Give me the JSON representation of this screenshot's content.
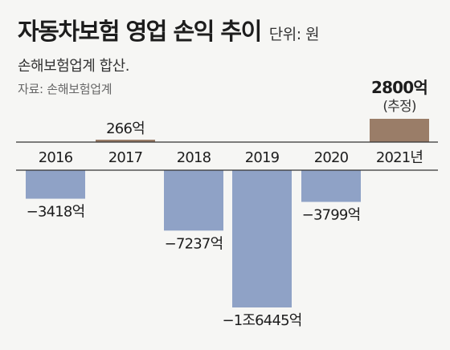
{
  "header": {
    "title": "자동차보험 영업 손익 추이",
    "unit": "단위: 원",
    "subtitle": "손해보험업계 합산.",
    "source": "자료: 손해보험업계"
  },
  "colors": {
    "negative": "#8fa2c6",
    "positive": "#9a7d68",
    "axis": "#333333",
    "background": "#f6f6f4"
  },
  "chart_data": {
    "type": "bar",
    "categories": [
      "2016",
      "2017",
      "2018",
      "2019",
      "2020",
      "2021년"
    ],
    "values": [
      -3418,
      266,
      -7237,
      -16445,
      -3799,
      2800
    ],
    "data_labels": [
      "−3418억",
      "266억",
      "−7237억",
      "−1조6445억",
      "−3799억",
      "2800억"
    ],
    "annotations": [
      "",
      "",
      "",
      "",
      "",
      "(추정)"
    ],
    "title": "자동차보험 영업 손익 추이",
    "subtitle": "손해보험업계 합산.",
    "unit": "단위: 원",
    "source": "자료: 손해보험업계",
    "xlabel": "",
    "ylabel": "",
    "grid": false,
    "legend": "none",
    "ylim": [
      -16445,
      2800
    ]
  }
}
